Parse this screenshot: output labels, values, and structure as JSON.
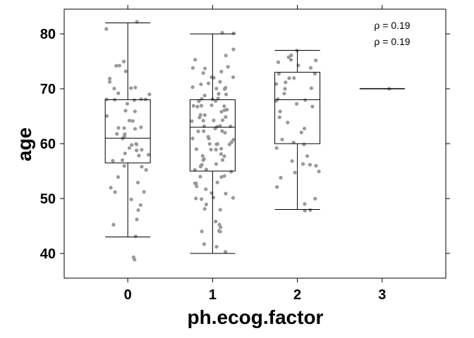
{
  "chart_data": {
    "type": "boxplot",
    "xlabel": "ph.ecog.factor",
    "ylabel": "age",
    "ylim": [
      35.5,
      84.5
    ],
    "yticks": [
      40,
      50,
      60,
      70,
      80
    ],
    "categories": [
      "0",
      "1",
      "2",
      "3"
    ],
    "boxes": [
      {
        "category": "0",
        "whisker_low": 43,
        "q1": 56.5,
        "median": 61,
        "q3": 68,
        "whisker_high": 82
      },
      {
        "category": "1",
        "whisker_low": 40,
        "q1": 55,
        "median": 63,
        "q3": 68,
        "whisker_high": 80
      },
      {
        "category": "2",
        "whisker_low": 48,
        "q1": 60,
        "median": 68,
        "q3": 73,
        "whisker_high": 77
      },
      {
        "category": "3",
        "whisker_low": 70,
        "q1": 70,
        "median": 70,
        "q3": 70,
        "whisker_high": 70
      }
    ],
    "points": {
      "0": [
        39,
        39,
        43,
        45,
        46,
        48,
        49,
        50,
        51,
        51,
        52,
        53,
        54,
        55,
        56,
        56,
        57,
        57,
        58,
        58,
        58,
        59,
        59,
        59,
        60,
        60,
        60,
        61,
        61,
        62,
        62,
        63,
        63,
        63,
        63,
        64,
        64,
        65,
        66,
        66,
        67,
        68,
        68,
        68,
        68,
        68,
        69,
        69,
        70,
        70,
        70,
        71,
        72,
        73,
        74,
        74,
        75,
        81,
        82
      ],
      "1": [
        40,
        41,
        42,
        44,
        44,
        44,
        45,
        45,
        46,
        48,
        48,
        49,
        50,
        50,
        50,
        50,
        51,
        51,
        52,
        52,
        53,
        53,
        53,
        54,
        54,
        54,
        55,
        55,
        55,
        56,
        56,
        56,
        57,
        57,
        57,
        58,
        58,
        58,
        59,
        59,
        59,
        59,
        60,
        60,
        60,
        60,
        60,
        61,
        61,
        61,
        61,
        62,
        62,
        62,
        62,
        63,
        63,
        63,
        63,
        63,
        64,
        64,
        64,
        64,
        65,
        65,
        65,
        65,
        66,
        66,
        66,
        67,
        67,
        67,
        67,
        67,
        68,
        68,
        68,
        68,
        68,
        69,
        69,
        69,
        70,
        70,
        70,
        70,
        71,
        71,
        71,
        72,
        72,
        72,
        73,
        73,
        74,
        74,
        74,
        75,
        76,
        77,
        80,
        80
      ],
      "2": [
        48,
        48,
        49,
        50,
        52,
        54,
        55,
        55,
        56,
        56,
        56,
        57,
        58,
        59,
        60,
        60,
        61,
        62,
        63,
        64,
        65,
        66,
        67,
        67,
        68,
        68,
        68,
        69,
        70,
        70,
        71,
        71,
        72,
        72,
        73,
        73,
        74,
        74,
        75,
        75,
        75,
        76,
        76,
        77
      ],
      "3": [
        70
      ]
    },
    "annotations": [
      "ρ = 0.19",
      "ρ = 0.19"
    ],
    "point_color": "#999999"
  }
}
